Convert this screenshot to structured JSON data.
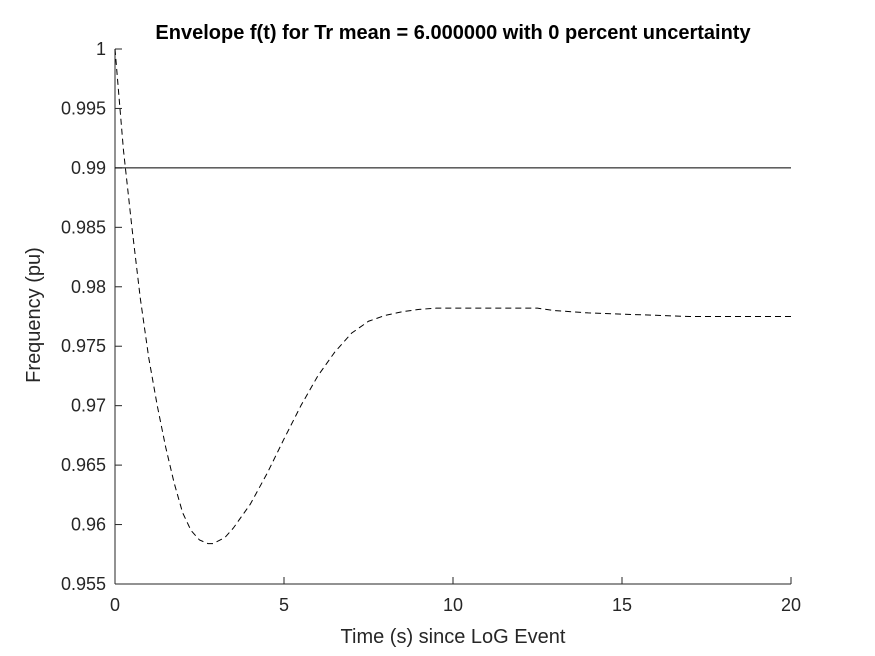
{
  "chart_data": {
    "type": "line",
    "title": "Envelope f(t) for Tr mean = 6.000000 with 0 percent uncertainty",
    "xlabel": "Time (s) since LoG Event",
    "ylabel": "Frequency (pu)",
    "xlim": [
      0,
      20
    ],
    "ylim": [
      0.955,
      1.0
    ],
    "xticks": [
      "0",
      "5",
      "10",
      "15",
      "20"
    ],
    "yticks": [
      "0.955",
      "0.96",
      "0.965",
      "0.97",
      "0.975",
      "0.98",
      "0.985",
      "0.99",
      "0.995",
      "1"
    ],
    "grid": false,
    "legend": "none",
    "series": [
      {
        "style": "dashed",
        "color": "#000000",
        "x": [
          0,
          0.25,
          0.5,
          0.75,
          1.0,
          1.25,
          1.5,
          1.75,
          2.0,
          2.25,
          2.5,
          2.75,
          2.9,
          3.25,
          3.5,
          4.0,
          4.5,
          5.0,
          5.5,
          6.0,
          6.5,
          7.0,
          7.5,
          8.0,
          8.5,
          9.0,
          9.5,
          10.0,
          10.5,
          11.0,
          11.5,
          12.0,
          12.5,
          13.0,
          14.0,
          15.0,
          16.0,
          17.0,
          18.0,
          19.0,
          20.0
        ],
        "y": [
          1.0,
          0.9915,
          0.985,
          0.979,
          0.974,
          0.97,
          0.9665,
          0.9635,
          0.961,
          0.9595,
          0.9587,
          0.9584,
          0.9584,
          0.9589,
          0.9597,
          0.9617,
          0.9643,
          0.9672,
          0.97,
          0.9725,
          0.9745,
          0.9761,
          0.9771,
          0.9776,
          0.9779,
          0.9781,
          0.9782,
          0.9782,
          0.9782,
          0.9782,
          0.9782,
          0.9782,
          0.9782,
          0.978,
          0.9778,
          0.9777,
          0.9776,
          0.9775,
          0.9775,
          0.9775,
          0.9775
        ]
      },
      {
        "style": "solid",
        "color": "#000000",
        "x": [
          0,
          20
        ],
        "y": [
          0.99,
          0.99
        ]
      }
    ]
  }
}
